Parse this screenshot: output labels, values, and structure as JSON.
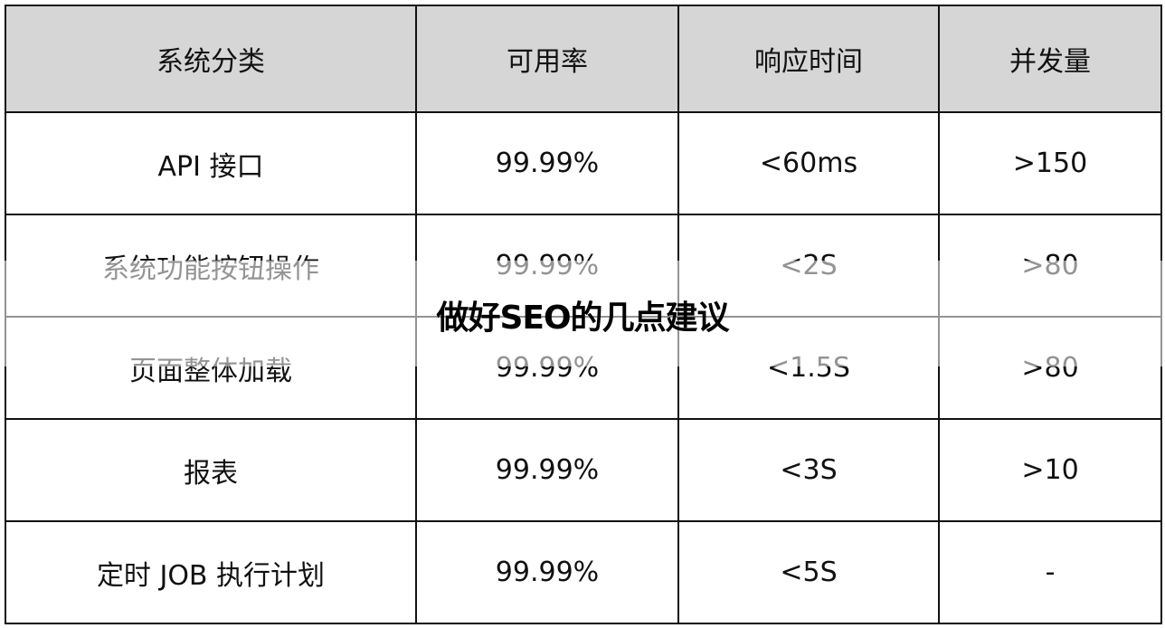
{
  "overlay_title": "做好SEO的几点建议",
  "table": {
    "headers": [
      "系统分类",
      "可用率",
      "响应时间",
      "并发量"
    ],
    "rows": [
      [
        "API 接口",
        "99.99%",
        "<60ms",
        ">150"
      ],
      [
        "系统功能按钮操作",
        "99.99%",
        "<2S",
        ">80"
      ],
      [
        "页面整体加载",
        "99.99%",
        "<1.5S",
        ">80"
      ],
      [
        "报表",
        "99.99%",
        "<3S",
        ">10"
      ],
      [
        "定时 JOB 执行计划",
        "99.99%",
        "<5S",
        "-"
      ]
    ]
  }
}
